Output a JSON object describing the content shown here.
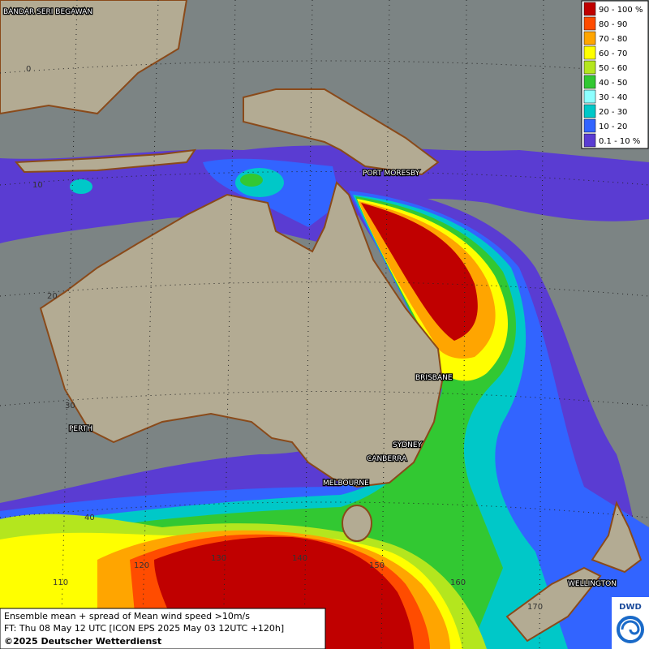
{
  "map": {
    "places": [
      "BANDAR SERI BEGAWAN",
      "PORT MORESBY",
      "BRISBANE",
      "SYDNEY",
      "CANBERRA",
      "MELBOURNE",
      "PERTH",
      "WELLINGTON"
    ],
    "latitude_labels": [
      "0",
      "10",
      "20",
      "30",
      "40"
    ],
    "longitude_labels": [
      "110",
      "120",
      "130",
      "140",
      "150",
      "160",
      "170"
    ],
    "legend": [
      {
        "label": "90 - 100 %",
        "color": "#c00000"
      },
      {
        "label": "80 - 90",
        "color": "#ff4c00"
      },
      {
        "label": "70 - 80",
        "color": "#ffa500"
      },
      {
        "label": "60 - 70",
        "color": "#ffff00"
      },
      {
        "label": "50 - 60",
        "color": "#b4e61e"
      },
      {
        "label": "40 - 50",
        "color": "#32c832"
      },
      {
        "label": "30 - 40",
        "color": "#8cffff"
      },
      {
        "label": "20 - 30",
        "color": "#00c8c8"
      },
      {
        "label": "10 - 20",
        "color": "#3264ff"
      },
      {
        "label": "0.1 - 10 %",
        "color": "#5a3cd2"
      }
    ],
    "caption": [
      "Ensemble mean + spread of Mean wind speed >10m/s",
      "FT: Thu 08 May 12 UTC [ICON EPS 2025 May 03 12UTC +120h]",
      "©2025 Deutscher Wetterdienst"
    ],
    "logo": "DWD"
  }
}
